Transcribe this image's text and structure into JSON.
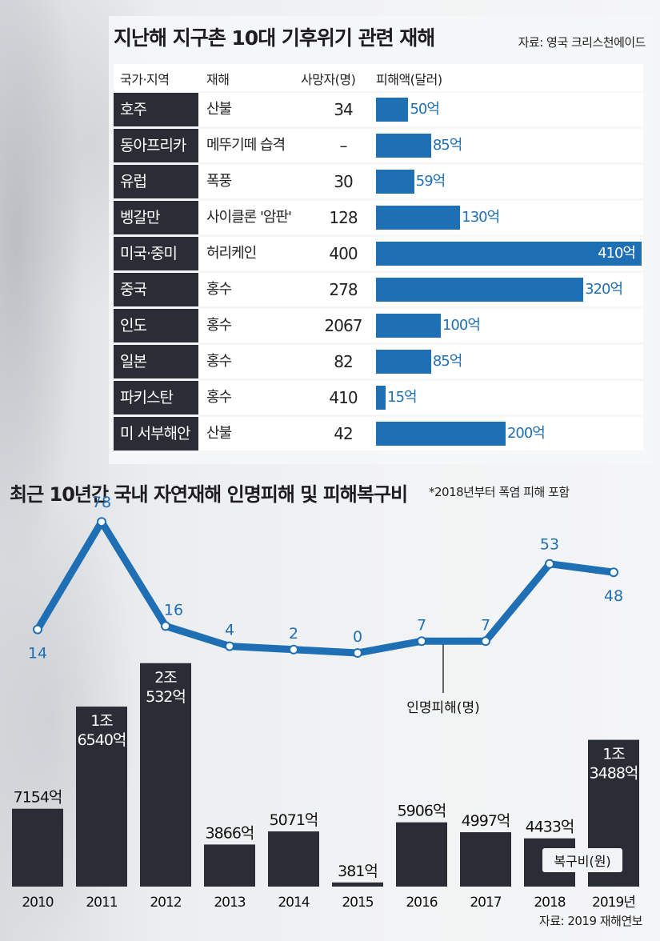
{
  "table": {
    "title": "지난해 지구촌 10대 기후위기 관련 재해",
    "source": "자료: 영국 크리스천에이드",
    "headers": [
      "국가·지역",
      "재해",
      "사망자(명)",
      "피해액(달러)"
    ],
    "rows": [
      {
        "region": "호주",
        "disaster": "산불",
        "deaths": "34",
        "damage": 50,
        "damage_label": "50억"
      },
      {
        "region": "동아프리카",
        "disaster": "메뚜기떼 습격",
        "deaths": "–",
        "damage": 85,
        "damage_label": "85억"
      },
      {
        "region": "유럽",
        "disaster": "폭풍",
        "deaths": "30",
        "damage": 59,
        "damage_label": "59억"
      },
      {
        "region": "벵갈만",
        "disaster": "사이클론 '암판'",
        "deaths": "128",
        "damage": 130,
        "damage_label": "130억"
      },
      {
        "region": "미국·중미",
        "disaster": "허리케인",
        "deaths": "400",
        "damage": 410,
        "damage_label": "410억"
      },
      {
        "region": "중국",
        "disaster": "홍수",
        "deaths": "278",
        "damage": 320,
        "damage_label": "320억"
      },
      {
        "region": "인도",
        "disaster": "홍수",
        "deaths": "2067",
        "damage": 100,
        "damage_label": "100억"
      },
      {
        "region": "일본",
        "disaster": "홍수",
        "deaths": "82",
        "damage": 85,
        "damage_label": "85억"
      },
      {
        "region": "파키스탄",
        "disaster": "홍수",
        "deaths": "410",
        "damage": 15,
        "damage_label": "15억"
      },
      {
        "region": "미 서부해안",
        "disaster": "산불",
        "deaths": "42",
        "damage": 200,
        "damage_label": "200억"
      }
    ]
  },
  "chart": {
    "title": "최근 10년간 국내 자연재해 인명피해 및 피해복구비",
    "note": "*2018년부터 폭염 피해 포함",
    "source": "자료: 2019 재해연보",
    "line_label": "인명피해(명)",
    "bar_label": "복구비(원)",
    "accent_color": "#1f6fb5",
    "bar_color": "#2a2d35"
  },
  "chart_data": {
    "type": "bar",
    "categories": [
      "2010",
      "2011",
      "2012",
      "2013",
      "2014",
      "2015",
      "2016",
      "2017",
      "2018",
      "2019년"
    ],
    "series": [
      {
        "name": "복구비(원)",
        "type": "bar",
        "unit": "억원",
        "values": [
          7154,
          16540,
          20532,
          3866,
          5071,
          381,
          5906,
          4997,
          4433,
          13488
        ],
        "labels": [
          "7154억",
          "1조 6540억",
          "2조 532억",
          "3866억",
          "5071억",
          "381억",
          "5906억",
          "4997억",
          "4433억",
          "1조 3488억"
        ]
      },
      {
        "name": "인명피해(명)",
        "type": "line",
        "unit": "명",
        "values": [
          14,
          78,
          16,
          4,
          2,
          0,
          7,
          7,
          53,
          48
        ]
      }
    ]
  }
}
